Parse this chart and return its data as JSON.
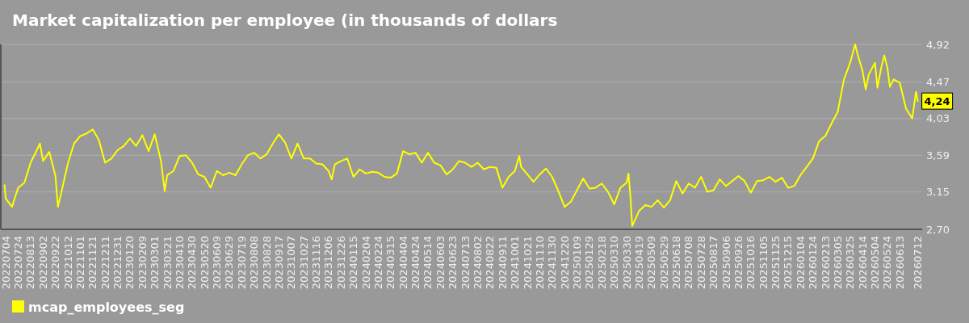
{
  "chart_data": {
    "type": "line",
    "title": "Market capitalization per employee (in thousands of dollars",
    "x": [
      "2022-07-02",
      "2022-07-04",
      "2022-07-14",
      "2022-07-24",
      "2022-08-03",
      "2022-08-13",
      "2022-08-23",
      "2022-08-28",
      "2022-09-02",
      "2022-09-12",
      "2022-09-22",
      "2022-09-26",
      "2022-10-02",
      "2022-10-12",
      "2022-10-22",
      "2022-11-01",
      "2022-11-11",
      "2022-11-21",
      "2022-12-01",
      "2022-12-11",
      "2022-12-21",
      "2022-12-31",
      "2023-01-10",
      "2023-01-20",
      "2023-01-30",
      "2023-02-09",
      "2023-02-19",
      "2023-03-01",
      "2023-03-11",
      "2023-03-17",
      "2023-03-21",
      "2023-03-31",
      "2023-04-10",
      "2023-04-20",
      "2023-04-30",
      "2023-05-10",
      "2023-05-20",
      "2023-05-30",
      "2023-06-09",
      "2023-06-19",
      "2023-06-29",
      "2023-07-09",
      "2023-07-19",
      "2023-07-29",
      "2023-08-08",
      "2023-08-18",
      "2023-08-28",
      "2023-09-07",
      "2023-09-17",
      "2023-09-27",
      "2023-10-07",
      "2023-10-17",
      "2023-10-27",
      "2023-11-06",
      "2023-11-16",
      "2023-11-26",
      "2023-12-06",
      "2023-12-11",
      "2023-12-16",
      "2023-12-26",
      "2024-01-05",
      "2024-01-15",
      "2024-01-25",
      "2024-02-04",
      "2024-02-14",
      "2024-02-24",
      "2024-03-05",
      "2024-03-15",
      "2024-03-25",
      "2024-04-04",
      "2024-04-14",
      "2024-04-24",
      "2024-05-04",
      "2024-05-14",
      "2024-05-24",
      "2024-06-03",
      "2024-06-13",
      "2024-06-23",
      "2024-07-03",
      "2024-07-13",
      "2024-07-23",
      "2024-08-02",
      "2024-08-12",
      "2024-08-22",
      "2024-09-01",
      "2024-09-11",
      "2024-09-21",
      "2024-10-01",
      "2024-10-08",
      "2024-10-11",
      "2024-10-21",
      "2024-10-31",
      "2024-11-10",
      "2024-11-20",
      "2024-11-30",
      "2024-12-10",
      "2024-12-20",
      "2024-12-30",
      "2025-01-09",
      "2025-01-19",
      "2025-01-29",
      "2025-02-08",
      "2025-02-18",
      "2025-02-28",
      "2025-03-10",
      "2025-03-20",
      "2025-03-30",
      "2025-04-02",
      "2025-04-05",
      "2025-04-08",
      "2025-04-19",
      "2025-04-29",
      "2025-05-09",
      "2025-05-19",
      "2025-05-29",
      "2025-06-08",
      "2025-06-18",
      "2025-06-28",
      "2025-07-08",
      "2025-07-18",
      "2025-07-28",
      "2025-08-07",
      "2025-08-17",
      "2025-08-27",
      "2025-09-06",
      "2025-09-16",
      "2025-09-26",
      "2025-10-06",
      "2025-10-16",
      "2025-10-26",
      "2025-11-05",
      "2025-11-15",
      "2025-11-25",
      "2025-12-05",
      "2025-12-15",
      "2025-12-25",
      "2026-01-04",
      "2026-01-14",
      "2026-01-24",
      "2026-02-03",
      "2026-02-13",
      "2026-02-23",
      "2026-03-05",
      "2026-03-15",
      "2026-03-25",
      "2026-04-02",
      "2026-04-06",
      "2026-04-14",
      "2026-04-19",
      "2026-04-24",
      "2026-05-04",
      "2026-05-08",
      "2026-05-14",
      "2026-05-19",
      "2026-05-24",
      "2026-05-28",
      "2026-06-03",
      "2026-06-13",
      "2026-06-23",
      "2026-07-03",
      "2026-07-09",
      "2026-07-12"
    ],
    "series": [
      {
        "name": "mcap_employees_seg",
        "color": "#ffff00",
        "values": [
          3.23,
          3.07,
          2.97,
          3.2,
          3.26,
          3.5,
          3.65,
          3.73,
          3.52,
          3.63,
          3.34,
          2.97,
          3.16,
          3.49,
          3.73,
          3.82,
          3.85,
          3.9,
          3.77,
          3.5,
          3.55,
          3.65,
          3.7,
          3.79,
          3.7,
          3.83,
          3.64,
          3.84,
          3.52,
          3.16,
          3.35,
          3.4,
          3.58,
          3.59,
          3.5,
          3.36,
          3.33,
          3.2,
          3.4,
          3.35,
          3.38,
          3.35,
          3.48,
          3.59,
          3.62,
          3.55,
          3.6,
          3.73,
          3.84,
          3.74,
          3.55,
          3.73,
          3.55,
          3.55,
          3.49,
          3.48,
          3.4,
          3.3,
          3.48,
          3.52,
          3.55,
          3.33,
          3.42,
          3.37,
          3.39,
          3.38,
          3.33,
          3.32,
          3.37,
          3.64,
          3.6,
          3.62,
          3.5,
          3.62,
          3.5,
          3.47,
          3.36,
          3.42,
          3.52,
          3.5,
          3.45,
          3.5,
          3.42,
          3.45,
          3.44,
          3.2,
          3.33,
          3.4,
          3.58,
          3.45,
          3.36,
          3.27,
          3.36,
          3.43,
          3.33,
          3.16,
          2.97,
          3.03,
          3.17,
          3.31,
          3.19,
          3.2,
          3.25,
          3.15,
          3.0,
          3.2,
          3.26,
          3.37,
          3.1,
          2.74,
          2.92,
          2.99,
          2.97,
          3.05,
          2.96,
          3.05,
          3.28,
          3.13,
          3.25,
          3.2,
          3.33,
          3.15,
          3.17,
          3.3,
          3.22,
          3.28,
          3.34,
          3.28,
          3.14,
          3.28,
          3.29,
          3.33,
          3.27,
          3.32,
          3.2,
          3.22,
          3.35,
          3.45,
          3.55,
          3.76,
          3.82,
          3.97,
          4.11,
          4.5,
          4.7,
          4.92,
          4.8,
          4.6,
          4.38,
          4.56,
          4.7,
          4.4,
          4.64,
          4.79,
          4.64,
          4.41,
          4.5,
          4.46,
          4.15,
          4.03,
          4.35,
          4.24
        ]
      }
    ],
    "xlim": [
      "2022-06-26",
      "2026-07-19"
    ],
    "xticks": [
      {
        "value": "2022-07-04",
        "label": "20220704"
      },
      {
        "value": "2022-07-24",
        "label": "20220724"
      },
      {
        "value": "2022-08-13",
        "label": "20220813"
      },
      {
        "value": "2022-09-02",
        "label": "20220902"
      },
      {
        "value": "2022-09-22",
        "label": "20220922"
      },
      {
        "value": "2022-10-12",
        "label": "20221012"
      },
      {
        "value": "2022-11-01",
        "label": "20221101"
      },
      {
        "value": "2022-11-21",
        "label": "20221121"
      },
      {
        "value": "2022-12-11",
        "label": "20221211"
      },
      {
        "value": "2022-12-31",
        "label": "20221231"
      },
      {
        "value": "2023-01-20",
        "label": "20230120"
      },
      {
        "value": "2023-02-09",
        "label": "20230209"
      },
      {
        "value": "2023-03-01",
        "label": "20230301"
      },
      {
        "value": "2023-03-21",
        "label": "20230321"
      },
      {
        "value": "2023-04-10",
        "label": "20230410"
      },
      {
        "value": "2023-04-30",
        "label": "20230430"
      },
      {
        "value": "2023-05-20",
        "label": "20230520"
      },
      {
        "value": "2023-06-09",
        "label": "20230609"
      },
      {
        "value": "2023-06-29",
        "label": "20230629"
      },
      {
        "value": "2023-07-19",
        "label": "20230719"
      },
      {
        "value": "2023-08-08",
        "label": "20230808"
      },
      {
        "value": "2023-08-28",
        "label": "20230828"
      },
      {
        "value": "2023-09-17",
        "label": "20230917"
      },
      {
        "value": "2023-10-07",
        "label": "20231007"
      },
      {
        "value": "2023-10-27",
        "label": "20231027"
      },
      {
        "value": "2023-11-16",
        "label": "20231116"
      },
      {
        "value": "2023-12-06",
        "label": "20231206"
      },
      {
        "value": "2023-12-26",
        "label": "20231226"
      },
      {
        "value": "2024-01-15",
        "label": "20240115"
      },
      {
        "value": "2024-02-04",
        "label": "20240204"
      },
      {
        "value": "2024-02-24",
        "label": "20240224"
      },
      {
        "value": "2024-03-15",
        "label": "20240315"
      },
      {
        "value": "2024-04-04",
        "label": "20240404"
      },
      {
        "value": "2024-04-24",
        "label": "20240424"
      },
      {
        "value": "2024-05-14",
        "label": "20240514"
      },
      {
        "value": "2024-06-03",
        "label": "20240603"
      },
      {
        "value": "2024-06-23",
        "label": "20240623"
      },
      {
        "value": "2024-07-13",
        "label": "20240713"
      },
      {
        "value": "2024-08-02",
        "label": "20240802"
      },
      {
        "value": "2024-08-22",
        "label": "20240822"
      },
      {
        "value": "2024-09-11",
        "label": "20240911"
      },
      {
        "value": "2024-10-01",
        "label": "20241001"
      },
      {
        "value": "2024-10-21",
        "label": "20241021"
      },
      {
        "value": "2024-11-10",
        "label": "20241110"
      },
      {
        "value": "2024-11-30",
        "label": "20241130"
      },
      {
        "value": "2024-12-20",
        "label": "20241220"
      },
      {
        "value": "2025-01-09",
        "label": "20250109"
      },
      {
        "value": "2025-01-29",
        "label": "20250129"
      },
      {
        "value": "2025-02-18",
        "label": "20250218"
      },
      {
        "value": "2025-03-10",
        "label": "20250310"
      },
      {
        "value": "2025-03-30",
        "label": "20250330"
      },
      {
        "value": "2025-04-19",
        "label": "20250419"
      },
      {
        "value": "2025-05-09",
        "label": "20250509"
      },
      {
        "value": "2025-05-29",
        "label": "20250529"
      },
      {
        "value": "2025-06-18",
        "label": "20250618"
      },
      {
        "value": "2025-07-08",
        "label": "20250708"
      },
      {
        "value": "2025-07-28",
        "label": "20250728"
      },
      {
        "value": "2025-08-17",
        "label": "20250817"
      },
      {
        "value": "2025-09-06",
        "label": "20250906"
      },
      {
        "value": "2025-09-26",
        "label": "20250926"
      },
      {
        "value": "2025-10-16",
        "label": "20251016"
      },
      {
        "value": "2025-11-05",
        "label": "20251105"
      },
      {
        "value": "2025-11-25",
        "label": "20251125"
      },
      {
        "value": "2025-12-15",
        "label": "20251215"
      },
      {
        "value": "2026-01-04",
        "label": "20260104"
      },
      {
        "value": "2026-01-24",
        "label": "20260124"
      },
      {
        "value": "2026-02-13",
        "label": "20260213"
      },
      {
        "value": "2026-03-05",
        "label": "20260305"
      },
      {
        "value": "2026-03-25",
        "label": "20260325"
      },
      {
        "value": "2026-04-14",
        "label": "20260414"
      },
      {
        "value": "2026-05-04",
        "label": "20260504"
      },
      {
        "value": "2026-05-24",
        "label": "20260524"
      },
      {
        "value": "2026-06-13",
        "label": "20260613"
      },
      {
        "value": "2026-07-12",
        "label": "20260712"
      }
    ],
    "ylim": [
      2.7,
      4.92
    ],
    "yticks": [
      {
        "value": 2.7,
        "label": "2,70"
      },
      {
        "value": 3.15,
        "label": "3,15"
      },
      {
        "value": 3.59,
        "label": "3,59"
      },
      {
        "value": 4.03,
        "label": "4,03"
      },
      {
        "value": 4.47,
        "label": "4,47"
      },
      {
        "value": 4.92,
        "label": "4,92"
      }
    ],
    "grid": "y",
    "legend": "bottom left",
    "annotations": [
      {
        "text": "4,24",
        "x": "2026-07-12",
        "y": 4.24
      }
    ]
  }
}
